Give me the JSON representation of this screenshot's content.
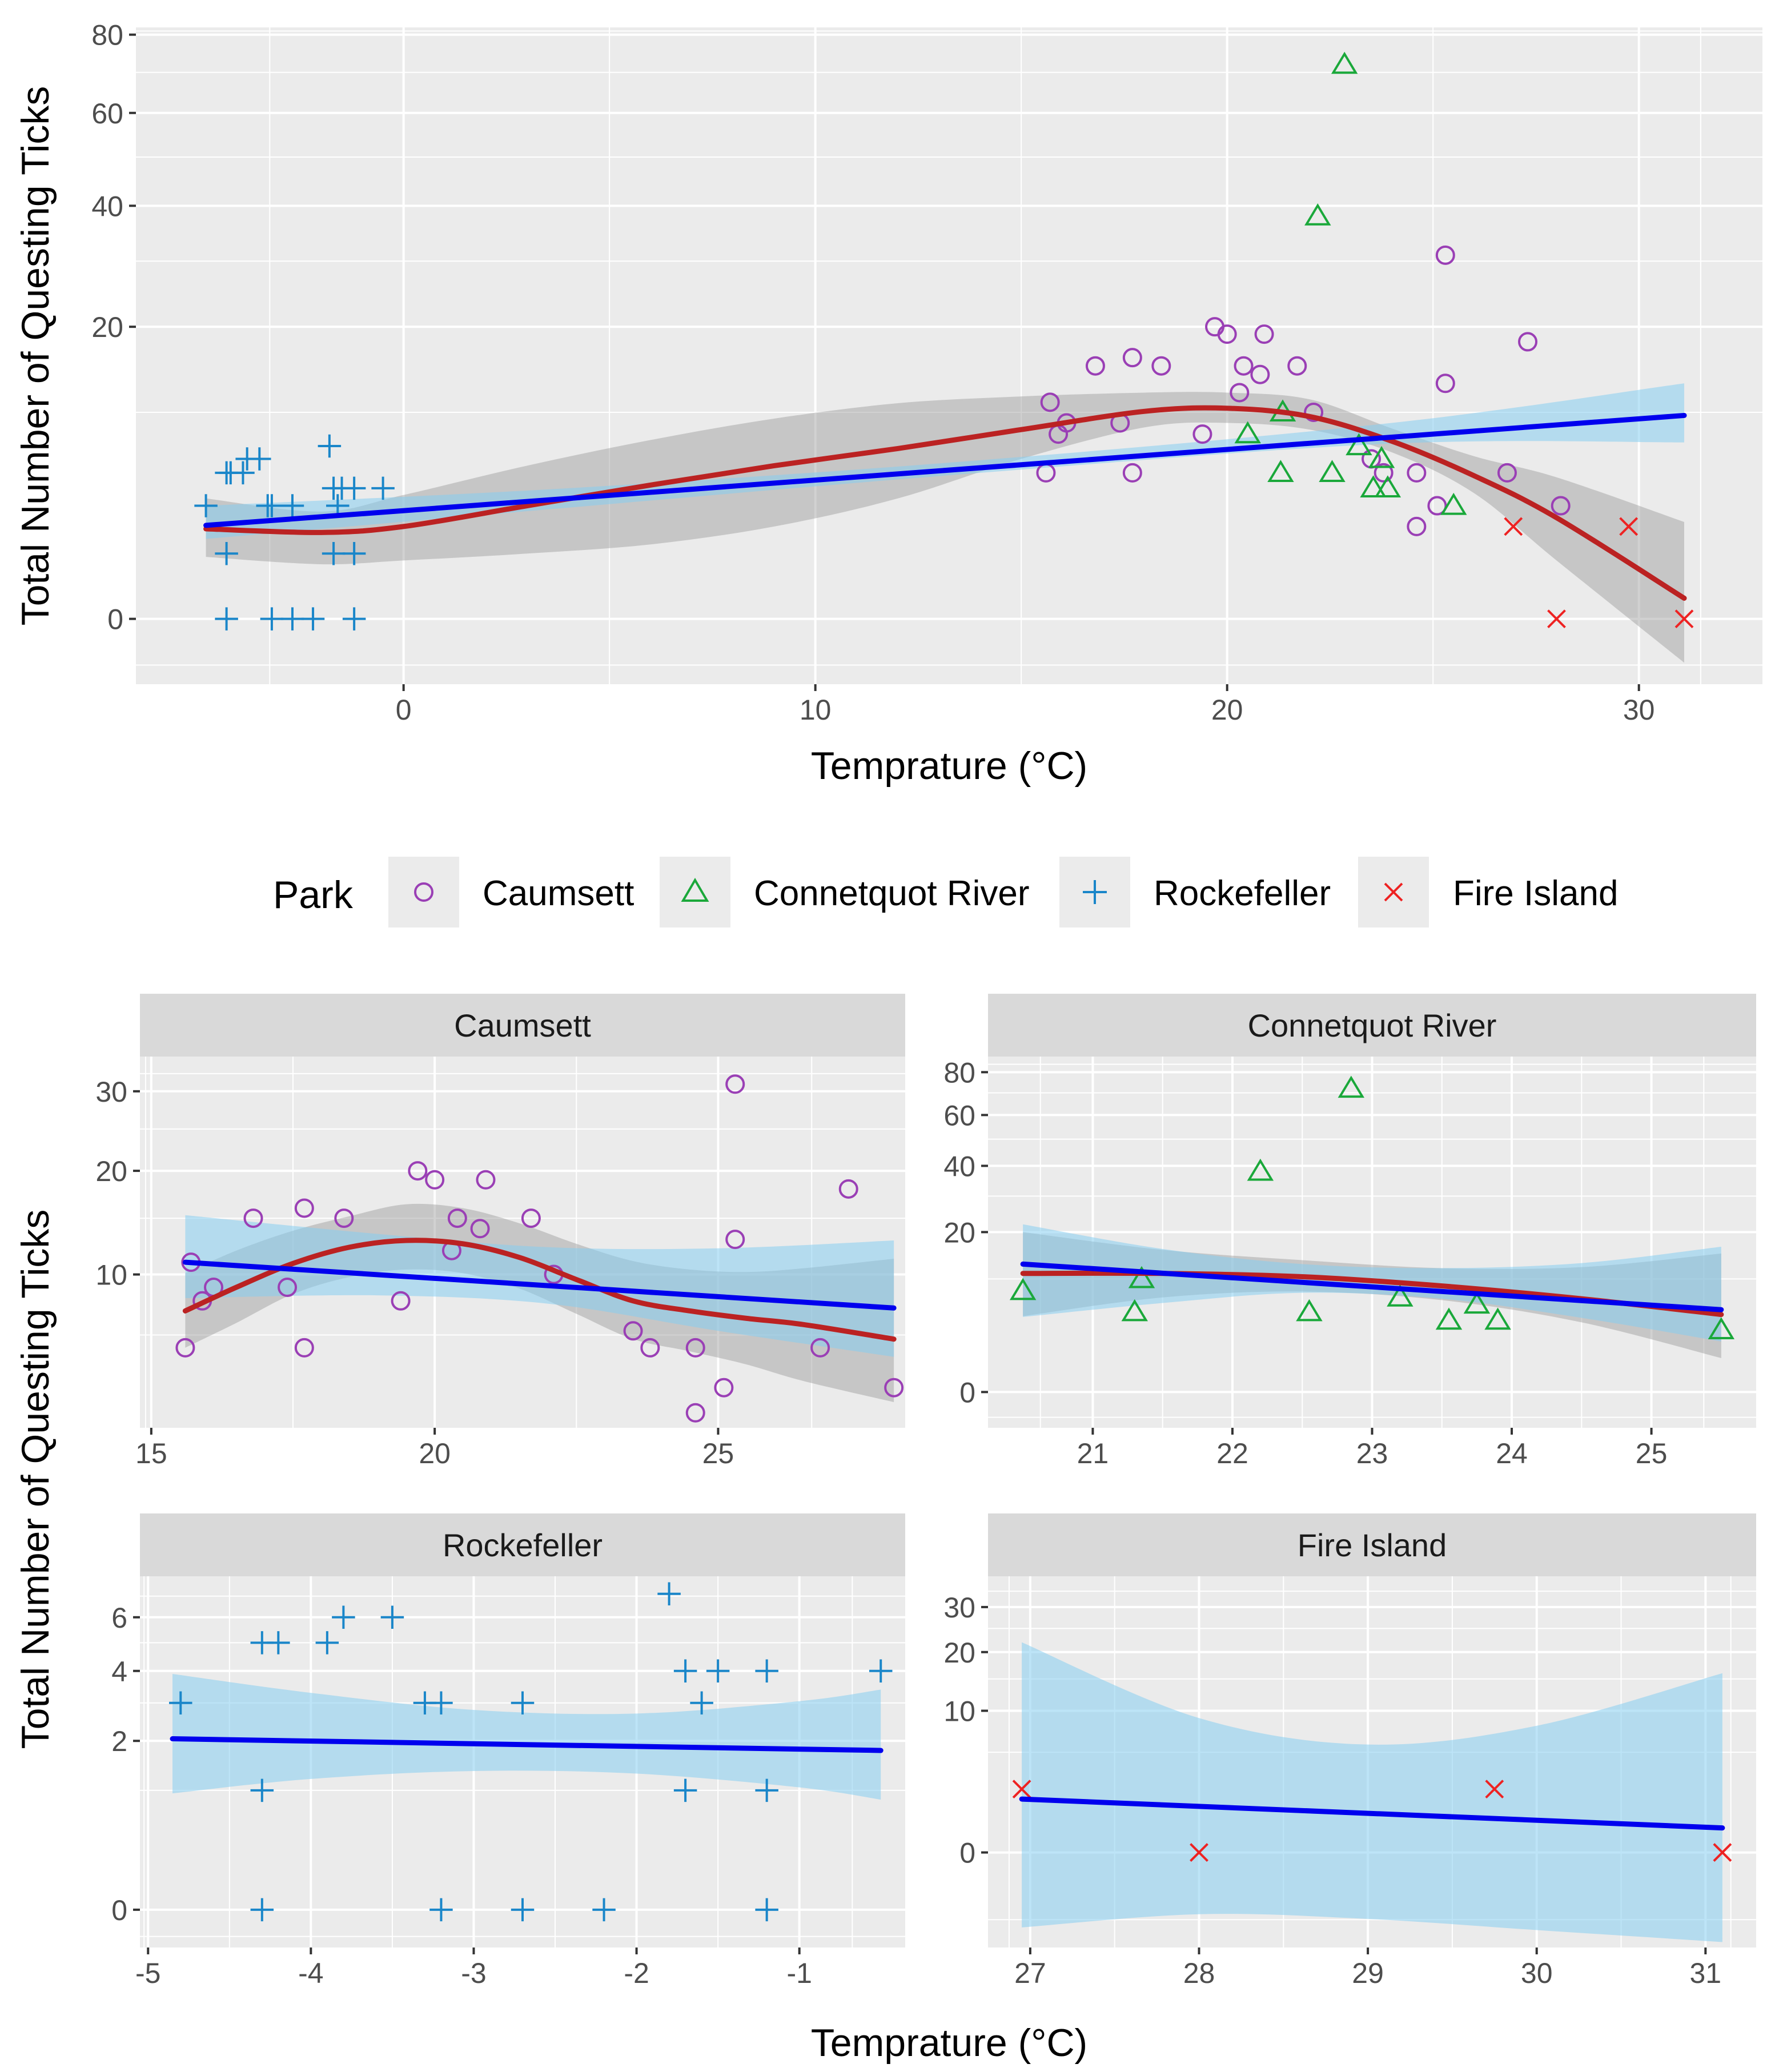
{
  "chart_data": {
    "type": "scatter",
    "shared": {
      "xlabel": "Temprature (°C)",
      "ylabel": "Total Number of Questing Ticks"
    },
    "legend": {
      "title": "Park",
      "placement": "center",
      "entries": [
        {
          "name": "Caumsett",
          "shape": "circle",
          "color": "#9a3fb5"
        },
        {
          "name": "Connetquot River",
          "shape": "triangle",
          "color": "#1aa83a"
        },
        {
          "name": "Rockefeller",
          "shape": "plus",
          "color": "#1a86c9"
        },
        {
          "name": "Fire Island",
          "shape": "cross",
          "color": "#ee2222"
        }
      ]
    },
    "colors": {
      "panel_bg": "#ebebeb",
      "grid": "#ffffff",
      "strip_bg": "#d9d9d9",
      "lm_line": "#0000ee",
      "lm_band": "#87cef0",
      "smooth_line": "#bb2222",
      "smooth_band": "#999999"
    },
    "main": {
      "xlim": [
        -6.5,
        33
      ],
      "x_ticks": [
        0,
        10,
        20,
        30
      ],
      "x_tick_labels": [
        "0",
        "10",
        "20",
        "30"
      ],
      "y_range": [
        -1.0,
        82
      ],
      "y_ticks": [
        0,
        20,
        40,
        60,
        80
      ],
      "y_tick_labels": [
        "0",
        "20",
        "40",
        "60",
        "80"
      ],
      "points": [
        {
          "park": "Rockefeller",
          "x": -4.8,
          "y": 3
        },
        {
          "park": "Rockefeller",
          "x": -4.3,
          "y": 5
        },
        {
          "park": "Rockefeller",
          "x": -4.2,
          "y": 5
        },
        {
          "park": "Rockefeller",
          "x": -3.9,
          "y": 5
        },
        {
          "park": "Rockefeller",
          "x": -3.8,
          "y": 6
        },
        {
          "park": "Rockefeller",
          "x": -3.5,
          "y": 6
        },
        {
          "park": "Rockefeller",
          "x": -3.3,
          "y": 3
        },
        {
          "park": "Rockefeller",
          "x": -3.2,
          "y": 3
        },
        {
          "park": "Rockefeller",
          "x": -2.7,
          "y": 3
        },
        {
          "park": "Rockefeller",
          "x": -1.8,
          "y": 7
        },
        {
          "park": "Rockefeller",
          "x": -1.7,
          "y": 4
        },
        {
          "park": "Rockefeller",
          "x": -1.5,
          "y": 4
        },
        {
          "park": "Rockefeller",
          "x": -1.2,
          "y": 4
        },
        {
          "park": "Rockefeller",
          "x": -0.5,
          "y": 4
        },
        {
          "park": "Rockefeller",
          "x": -1.6,
          "y": 3
        },
        {
          "park": "Rockefeller",
          "x": -4.3,
          "y": 1
        },
        {
          "park": "Rockefeller",
          "x": -1.7,
          "y": 1
        },
        {
          "park": "Rockefeller",
          "x": -1.2,
          "y": 1
        },
        {
          "park": "Rockefeller",
          "x": -4.3,
          "y": 0
        },
        {
          "park": "Rockefeller",
          "x": -3.2,
          "y": 0
        },
        {
          "park": "Rockefeller",
          "x": -2.7,
          "y": 0
        },
        {
          "park": "Rockefeller",
          "x": -2.2,
          "y": 0
        },
        {
          "park": "Rockefeller",
          "x": -1.2,
          "y": 0
        },
        {
          "park": "Caumsett",
          "x": 15.6,
          "y": 5
        },
        {
          "park": "Caumsett",
          "x": 15.7,
          "y": 11
        },
        {
          "park": "Caumsett",
          "x": 15.9,
          "y": 8
        },
        {
          "park": "Caumsett",
          "x": 16.1,
          "y": 9
        },
        {
          "park": "Caumsett",
          "x": 16.8,
          "y": 15
        },
        {
          "park": "Caumsett",
          "x": 17.4,
          "y": 9
        },
        {
          "park": "Caumsett",
          "x": 17.7,
          "y": 5
        },
        {
          "park": "Caumsett",
          "x": 17.7,
          "y": 16
        },
        {
          "park": "Caumsett",
          "x": 18.4,
          "y": 15
        },
        {
          "park": "Caumsett",
          "x": 19.4,
          "y": 8
        },
        {
          "park": "Caumsett",
          "x": 19.7,
          "y": 20
        },
        {
          "park": "Caumsett",
          "x": 20.0,
          "y": 19
        },
        {
          "park": "Caumsett",
          "x": 20.3,
          "y": 12
        },
        {
          "park": "Caumsett",
          "x": 20.4,
          "y": 15
        },
        {
          "park": "Caumsett",
          "x": 20.8,
          "y": 14
        },
        {
          "park": "Caumsett",
          "x": 20.9,
          "y": 19
        },
        {
          "park": "Caumsett",
          "x": 21.7,
          "y": 15
        },
        {
          "park": "Caumsett",
          "x": 22.1,
          "y": 10
        },
        {
          "park": "Caumsett",
          "x": 23.5,
          "y": 6
        },
        {
          "park": "Caumsett",
          "x": 23.8,
          "y": 5
        },
        {
          "park": "Caumsett",
          "x": 24.6,
          "y": 5
        },
        {
          "park": "Caumsett",
          "x": 24.6,
          "y": 2
        },
        {
          "park": "Caumsett",
          "x": 25.1,
          "y": 3
        },
        {
          "park": "Caumsett",
          "x": 25.3,
          "y": 13
        },
        {
          "park": "Caumsett",
          "x": 25.3,
          "y": 31
        },
        {
          "park": "Caumsett",
          "x": 26.8,
          "y": 5
        },
        {
          "park": "Caumsett",
          "x": 27.3,
          "y": 18
        },
        {
          "park": "Caumsett",
          "x": 28.1,
          "y": 3
        },
        {
          "park": "Connetquot River",
          "x": 20.5,
          "y": 8
        },
        {
          "park": "Connetquot River",
          "x": 21.3,
          "y": 5
        },
        {
          "park": "Connetquot River",
          "x": 21.35,
          "y": 10
        },
        {
          "park": "Connetquot River",
          "x": 22.2,
          "y": 38
        },
        {
          "park": "Connetquot River",
          "x": 22.55,
          "y": 5
        },
        {
          "park": "Connetquot River",
          "x": 22.85,
          "y": 72
        },
        {
          "park": "Connetquot River",
          "x": 23.2,
          "y": 7
        },
        {
          "park": "Connetquot River",
          "x": 23.55,
          "y": 4
        },
        {
          "park": "Connetquot River",
          "x": 23.75,
          "y": 6
        },
        {
          "park": "Connetquot River",
          "x": 23.9,
          "y": 4
        },
        {
          "park": "Connetquot River",
          "x": 25.5,
          "y": 3
        },
        {
          "park": "Fire Island",
          "x": 26.95,
          "y": 2
        },
        {
          "park": "Fire Island",
          "x": 28.0,
          "y": 0
        },
        {
          "park": "Fire Island",
          "x": 29.75,
          "y": 2
        },
        {
          "park": "Fire Island",
          "x": 31.1,
          "y": 0
        }
      ],
      "lm_fit": {
        "x": [
          -4.8,
          31.1
        ],
        "y": [
          2.05,
          9.7
        ]
      },
      "lm_band": {
        "x": [
          -4.8,
          4.0,
          14.0,
          24.0,
          31.1
        ],
        "lo": [
          1.5,
          2.9,
          5.0,
          7.2,
          7.3
        ],
        "hi": [
          3.0,
          4.0,
          5.9,
          9.0,
          13.0
        ]
      },
      "smooth_fit": {
        "x": [
          -4.8,
          -2,
          0,
          3,
          6,
          9,
          12,
          15,
          18,
          20,
          22,
          24,
          26,
          28,
          31.1
        ],
        "y": [
          1.9,
          1.75,
          2.0,
          3.0,
          4.2,
          5.5,
          6.8,
          8.4,
          10.1,
          10.4,
          9.6,
          7.4,
          4.8,
          2.4,
          0.1
        ]
      },
      "smooth_band": {
        "x": [
          -4.8,
          -2,
          0,
          3,
          6,
          9,
          12,
          15,
          18,
          20,
          22,
          24,
          26,
          28,
          31.1
        ],
        "lo": [
          0.9,
          0.7,
          0.8,
          1.0,
          1.3,
          2.0,
          3.4,
          6.0,
          8.6,
          9.0,
          8.4,
          6.5,
          3.7,
          0.8,
          -0.45
        ],
        "hi": [
          3.4,
          2.7,
          3.6,
          5.5,
          7.5,
          9.4,
          10.9,
          11.6,
          12.0,
          12.0,
          11.3,
          8.5,
          6.2,
          4.7,
          2.2
        ]
      }
    },
    "facets": [
      {
        "title": "Caumsett",
        "park": "Caumsett",
        "xlim": [
          14.8,
          28.3
        ],
        "x_ticks": [
          15,
          20,
          25
        ],
        "x_tick_labels": [
          "15",
          "20",
          "25"
        ],
        "y_range": [
          1.5,
          35
        ],
        "y_ticks": [
          10,
          20,
          30
        ],
        "y_tick_labels": [
          "10",
          "20",
          "30"
        ],
        "lm_fit": {
          "x": [
            15.6,
            28.1
          ],
          "y": [
            11,
            7.5
          ]
        },
        "lm_band": {
          "x": [
            15.6,
            19,
            22,
            25,
            28.1
          ],
          "lo": [
            8.2,
            8.4,
            7.8,
            6.0,
            4.5
          ],
          "hi": [
            15.3,
            13.5,
            12.3,
            12.2,
            12.9
          ]
        },
        "smooth_fit": {
          "x": [
            15.6,
            16.5,
            17.5,
            18.5,
            19.5,
            20.5,
            21.5,
            22.5,
            23.5,
            24.5,
            25.5,
            26.5,
            28.1
          ],
          "y": [
            7.3,
            9.0,
            10.9,
            12.3,
            12.9,
            12.6,
            11.4,
            9.6,
            8.0,
            7.3,
            6.8,
            6.4,
            5.5
          ]
        },
        "smooth_band": {
          "x": [
            15.6,
            16.5,
            17.5,
            18.5,
            19.5,
            20.5,
            21.5,
            22.5,
            23.5,
            24.5,
            25.5,
            26.5,
            28.1
          ],
          "lo": [
            5.0,
            6.5,
            8.5,
            9.8,
            10.4,
            10.1,
            8.9,
            7.1,
            5.5,
            4.8,
            4.1,
            3.3,
            2.4
          ],
          "hi": [
            10.1,
            12.0,
            13.8,
            15.2,
            16.4,
            16.0,
            14.5,
            12.6,
            11.1,
            10.4,
            10.2,
            10.5,
            11.3
          ]
        }
      },
      {
        "title": "Connetquot River",
        "park": "Connetquot River",
        "xlim": [
          20.25,
          25.75
        ],
        "x_ticks": [
          21,
          22,
          23,
          24,
          25
        ],
        "x_tick_labels": [
          "21",
          "22",
          "23",
          "24",
          "25"
        ],
        "y_range": [
          -1.0,
          88
        ],
        "y_ticks": [
          0,
          20,
          40,
          60,
          80
        ],
        "y_tick_labels": [
          "0",
          "20",
          "40",
          "60",
          "80"
        ],
        "lm_fit": {
          "x": [
            20.5,
            25.5
          ],
          "y": [
            12.8,
            5.3
          ]
        },
        "lm_band": {
          "x": [
            20.5,
            21.5,
            22.5,
            23.5,
            24.5,
            25.5
          ],
          "lo": [
            4.4,
            6.2,
            7.7,
            6.8,
            4.3,
            2.0
          ],
          "hi": [
            22.0,
            16.0,
            12.8,
            12.0,
            13.0,
            16.5
          ]
        },
        "smooth_fit": {
          "x": [
            20.5,
            21.5,
            22.5,
            23.5,
            24.5,
            25.5
          ],
          "y": [
            11.0,
            11.0,
            10.4,
            8.8,
            6.8,
            4.7
          ]
        },
        "smooth_band": {
          "x": [
            20.5,
            21.5,
            22.5,
            23.5,
            24.5,
            25.5
          ],
          "lo": [
            4.5,
            7.0,
            7.9,
            6.6,
            3.8,
            0.9
          ],
          "hi": [
            20.0,
            15.8,
            13.6,
            12.0,
            12.2,
            15.0
          ]
        }
      },
      {
        "title": "Rockefeller",
        "park": "Rockefeller",
        "xlim": [
          -5.05,
          -0.35
        ],
        "x_ticks": [
          -5,
          -4,
          -3,
          -2,
          -1
        ],
        "x_tick_labels": [
          "-5",
          "-4",
          "-3",
          "-2",
          "-1"
        ],
        "y_range": [
          -0.1,
          7.8
        ],
        "y_ticks": [
          0,
          2,
          4,
          6
        ],
        "y_tick_labels": [
          "0",
          "2",
          "4",
          "6"
        ],
        "lm_fit": {
          "x": [
            -4.85,
            -0.5
          ],
          "y": [
            2.05,
            1.78
          ]
        },
        "lm_band": {
          "x": [
            -4.85,
            -4,
            -3,
            -2,
            -1,
            -0.5
          ],
          "lo": [
            0.95,
            1.2,
            1.35,
            1.3,
            1.05,
            0.85
          ],
          "hi": [
            3.9,
            3.3,
            2.8,
            2.7,
            3.05,
            3.4
          ]
        }
      },
      {
        "title": "Fire Island",
        "park": "Fire Island",
        "xlim": [
          26.75,
          31.3
        ],
        "x_ticks": [
          27,
          28,
          29,
          30,
          31
        ],
        "x_tick_labels": [
          "27",
          "28",
          "29",
          "30",
          "31"
        ],
        "y_range": [
          -4.5,
          38
        ],
        "y_ticks": [
          0,
          10,
          20,
          30
        ],
        "y_tick_labels": [
          "0",
          "10",
          "20",
          "30"
        ],
        "lm_fit": {
          "x": [
            26.95,
            31.1
          ],
          "y": [
            1.42,
            0.3
          ]
        },
        "lm_band": {
          "x": [
            26.95,
            28,
            29,
            30,
            31.1
          ],
          "lo": [
            -2.8,
            -1.9,
            -2.2,
            -3.0,
            -4.0
          ],
          "hi": [
            22.0,
            9.0,
            5.8,
            8.0,
            16.0
          ]
        }
      }
    ]
  }
}
